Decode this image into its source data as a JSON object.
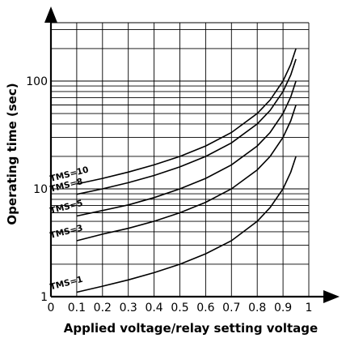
{
  "chart_data": {
    "type": "line",
    "title": "",
    "xlabel": "Applied voltage/relay setting voltage",
    "ylabel": "Operating time (sec)",
    "x_scale": "linear",
    "y_scale": "log",
    "xlim": [
      0,
      1
    ],
    "ylim": [
      1,
      300
    ],
    "grid": true,
    "x_ticks": [
      "0",
      "0.1",
      "0.2",
      "0.3",
      "0.4",
      "0.5",
      "0.6",
      "0.7",
      "0.8",
      "0.9",
      "1"
    ],
    "y_ticks": [
      "1",
      "10",
      "100"
    ],
    "series": [
      {
        "name": "TMS=10",
        "x": [
          0.1,
          0.2,
          0.3,
          0.4,
          0.5,
          0.6,
          0.7,
          0.8,
          0.85,
          0.9,
          0.93,
          0.95
        ],
        "y": [
          11.1,
          12.5,
          14.3,
          16.7,
          20,
          25,
          33.3,
          50,
          66.7,
          100,
          143,
          200
        ]
      },
      {
        "name": "TMS=8",
        "x": [
          0.1,
          0.2,
          0.3,
          0.4,
          0.5,
          0.6,
          0.7,
          0.8,
          0.85,
          0.9,
          0.93,
          0.95
        ],
        "y": [
          8.9,
          10,
          11.4,
          13.3,
          16,
          20,
          26.7,
          40,
          53.3,
          80,
          114,
          160
        ]
      },
      {
        "name": "TMS=5",
        "x": [
          0.1,
          0.2,
          0.3,
          0.4,
          0.5,
          0.6,
          0.7,
          0.8,
          0.85,
          0.9,
          0.93,
          0.95
        ],
        "y": [
          5.6,
          6.3,
          7.1,
          8.3,
          10,
          12.5,
          16.7,
          25,
          33.3,
          50,
          71.4,
          100
        ]
      },
      {
        "name": "TMS=3",
        "x": [
          0.1,
          0.2,
          0.3,
          0.4,
          0.5,
          0.6,
          0.7,
          0.8,
          0.85,
          0.9,
          0.93,
          0.95
        ],
        "y": [
          3.3,
          3.8,
          4.3,
          5,
          6,
          7.5,
          10,
          15,
          20,
          30,
          42.9,
          60
        ]
      },
      {
        "name": "TMS=1",
        "x": [
          0.1,
          0.2,
          0.3,
          0.4,
          0.5,
          0.6,
          0.7,
          0.8,
          0.85,
          0.9,
          0.93,
          0.95
        ],
        "y": [
          1.1,
          1.25,
          1.43,
          1.67,
          2,
          2.5,
          3.3,
          5,
          6.7,
          10,
          14.3,
          20
        ]
      }
    ]
  }
}
